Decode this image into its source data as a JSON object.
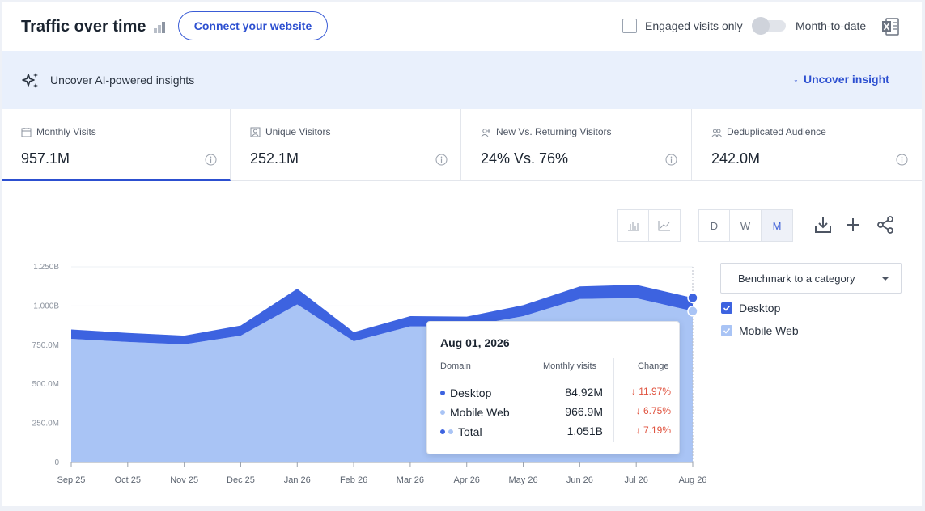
{
  "header": {
    "title": "Traffic over time",
    "connect_label": "Connect your website",
    "engaged_label": "Engaged visits only",
    "mtd_label": "Month-to-date",
    "engaged_checked": false,
    "mtd_on": false
  },
  "ai_bar": {
    "label": "Uncover AI-powered insights",
    "action": "Uncover insight"
  },
  "metrics": [
    {
      "label": "Monthly Visits",
      "value": "957.1M",
      "icon": "calendar-icon",
      "active": true
    },
    {
      "label": "Unique Visitors",
      "value": "252.1M",
      "icon": "person-icon",
      "active": false
    },
    {
      "label": "New Vs. Returning Visitors",
      "value": "24% Vs. 76%",
      "icon": "user-add-icon",
      "active": false
    },
    {
      "label": "Deduplicated Audience",
      "value": "242.0M",
      "icon": "people-icon",
      "active": false
    }
  ],
  "granularity": {
    "options": [
      "D",
      "W",
      "M"
    ],
    "selected": "M"
  },
  "benchmark": {
    "label": "Benchmark to a category"
  },
  "legend": [
    {
      "label": "Desktop",
      "color": "#3d63e0",
      "checked": true
    },
    {
      "label": "Mobile Web",
      "color": "#a9c4f5",
      "checked": true
    }
  ],
  "tooltip": {
    "date": "Aug 01, 2026",
    "col_domain": "Domain",
    "col_visits": "Monthly visits",
    "col_change": "Change",
    "rows": [
      {
        "label": "Desktop",
        "value": "84.92M",
        "change": "11.97%"
      },
      {
        "label": "Mobile Web",
        "value": "966.9M",
        "change": "6.75%"
      },
      {
        "label": "Total",
        "value": "1.051B",
        "change": "7.19%"
      }
    ]
  },
  "chart_data": {
    "type": "area",
    "stacked": true,
    "categories": [
      "Sep 25",
      "Oct 25",
      "Nov 25",
      "Dec 25",
      "Jan 26",
      "Feb 26",
      "Mar 26",
      "Apr 26",
      "May 26",
      "Jun 26",
      "Jul 26",
      "Aug 26"
    ],
    "series": [
      {
        "name": "Mobile Web",
        "color": "#a9c4f5",
        "values": [
          790,
          770,
          755,
          810,
          1010,
          775,
          870,
          870,
          935,
          1045,
          1050,
          966.9
        ]
      },
      {
        "name": "Desktop",
        "color": "#3d63e0",
        "values": [
          60,
          58,
          55,
          65,
          100,
          58,
          65,
          62,
          70,
          80,
          85,
          84.92
        ]
      }
    ],
    "y_ticks": [
      "0",
      "250.0M",
      "500.0M",
      "750.0M",
      "1.000B",
      "1.250B"
    ],
    "ylim": [
      0,
      1250
    ],
    "grid": true
  }
}
